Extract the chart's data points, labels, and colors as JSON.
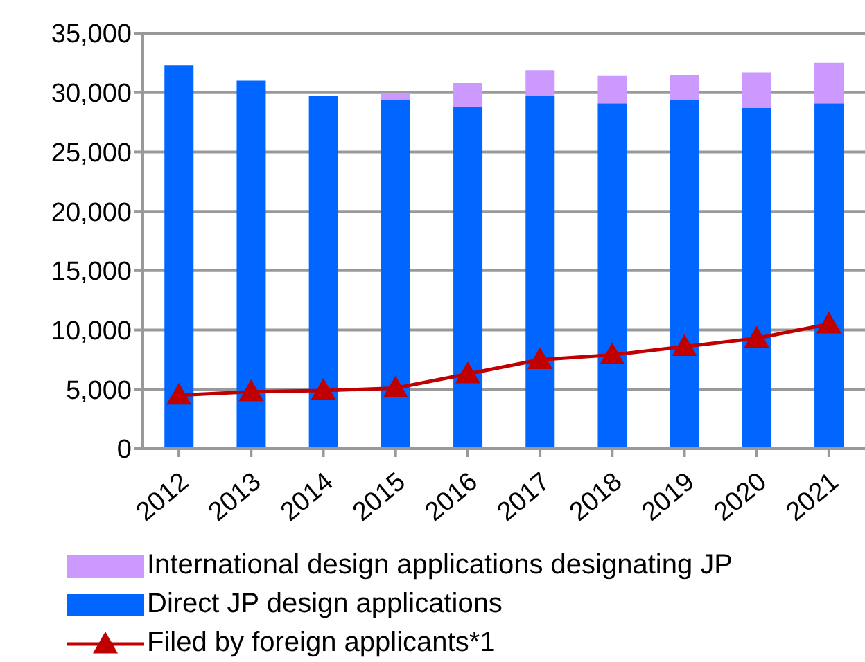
{
  "chart_data": {
    "type": "bar",
    "stacked": true,
    "categories": [
      "2012",
      "2013",
      "2014",
      "2015",
      "2016",
      "2017",
      "2018",
      "2019",
      "2020",
      "2021"
    ],
    "series": [
      {
        "name": "Direct JP design applications",
        "color": "#0066ff",
        "values": [
          32300,
          31000,
          29700,
          29400,
          28800,
          29700,
          29100,
          29400,
          28700,
          29100
        ]
      },
      {
        "name": "International design applications designating JP",
        "color": "#cc99ff",
        "values": [
          0,
          0,
          0,
          500,
          2000,
          2200,
          2300,
          2100,
          3000,
          3400
        ]
      },
      {
        "name": "Filed by foreign applicants*1",
        "type": "line",
        "color": "#c00000",
        "marker": "triangle",
        "values": [
          4500,
          4800,
          4900,
          5100,
          6300,
          7500,
          7900,
          8600,
          9300,
          10500
        ]
      }
    ],
    "ylim": [
      0,
      35000
    ],
    "yticks": [
      0,
      {
        "value": 5000,
        "label": "5,000"
      },
      {
        "value": 10000,
        "label": "10,000"
      },
      {
        "value": 15000,
        "label": "15,000"
      },
      {
        "value": 20000,
        "label": "20,000"
      },
      {
        "value": 25000,
        "label": "25,000"
      },
      {
        "value": 30000,
        "label": "30,000"
      },
      {
        "value": 35000,
        "label": "35,000"
      }
    ],
    "grid": "y",
    "legend": "bottom"
  }
}
